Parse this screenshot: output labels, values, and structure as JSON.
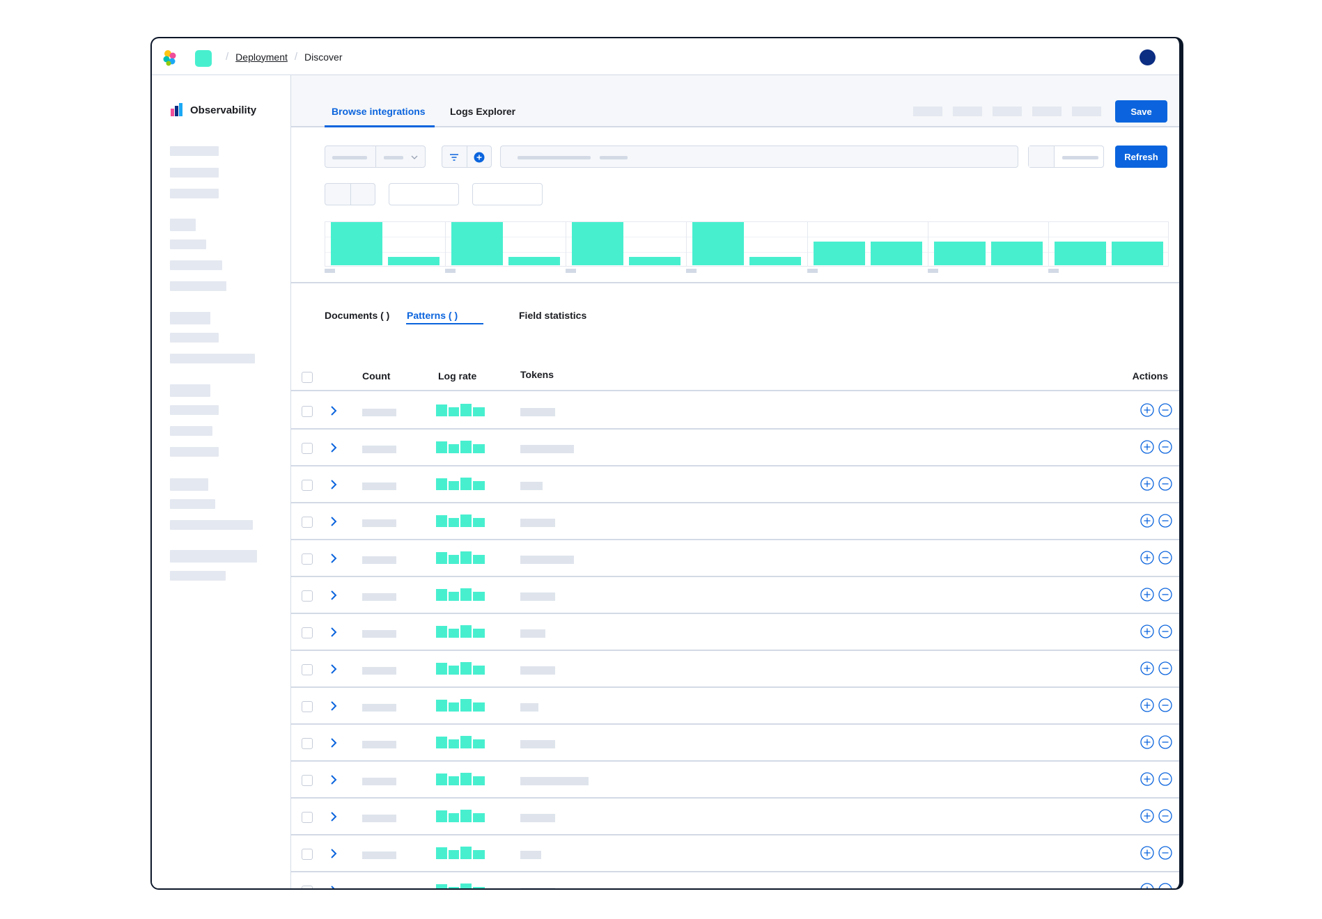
{
  "header": {
    "breadcrumbs": [
      {
        "label": "Deployment",
        "link": true
      },
      {
        "label": "Discover",
        "link": false
      }
    ]
  },
  "sidebar": {
    "title": "Observability"
  },
  "top_tabs": {
    "items": [
      {
        "label": "Browse integrations",
        "active": true
      },
      {
        "label": "Logs Explorer",
        "active": false
      }
    ],
    "save_label": "Save"
  },
  "query_bar": {
    "refresh_label": "Refresh"
  },
  "histogram": {
    "bar_heights": [
      [
        1.0,
        0.2
      ],
      [
        1.0,
        0.2
      ],
      [
        1.0,
        0.2
      ],
      [
        1.0,
        0.2
      ],
      [
        0.55,
        0.55
      ],
      [
        0.55,
        0.55
      ],
      [
        0.55,
        0.55
      ]
    ]
  },
  "sub_tabs": {
    "documents": "Documents (      )",
    "patterns": "Patterns (      )",
    "field_statistics": "Field statistics"
  },
  "table": {
    "columns": {
      "count": "Count",
      "log_rate": "Log rate",
      "tokens": "Tokens",
      "actions": "Actions"
    },
    "token_widths": [
      0.33,
      0.51,
      0.21,
      0.33,
      0.51,
      0.33,
      0.24,
      0.33,
      0.17,
      0.33,
      0.65,
      0.33,
      0.2,
      0.33
    ]
  },
  "colors": {
    "accent": "#0b64dd",
    "bar": "#48efcf",
    "placeholder": "#e4e8f0",
    "avatar": "#0b2d82"
  }
}
